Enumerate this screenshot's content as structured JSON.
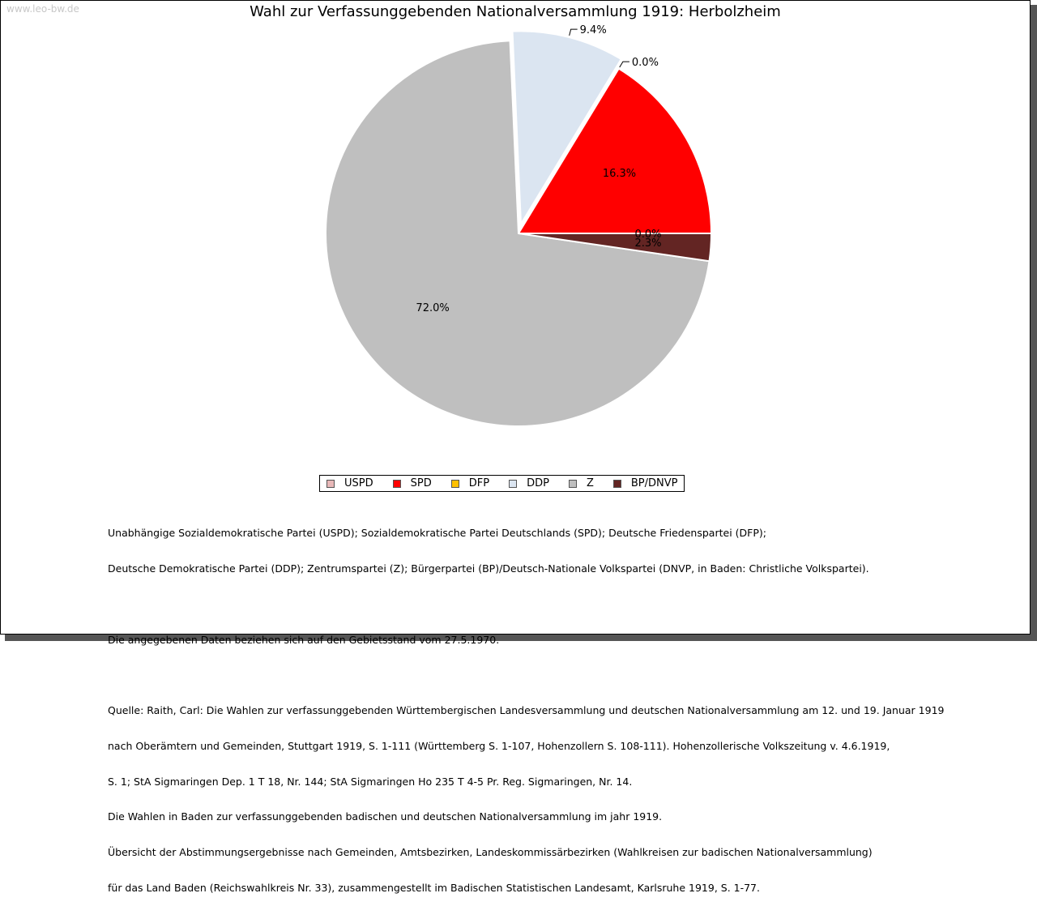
{
  "watermark": "www.leo-bw.de",
  "chart_data": {
    "type": "pie",
    "title": "Wahl zur Verfassunggebenden Nationalversammlung 1919: Herbolzheim",
    "slices": [
      {
        "name": "USPD",
        "value": 0.0,
        "label": "0.0%",
        "color": "#e8b8b8"
      },
      {
        "name": "SPD",
        "value": 16.3,
        "label": "16.3%",
        "color": "#ff0000"
      },
      {
        "name": "DFP",
        "value": 0.0,
        "label": "0.0%",
        "color": "#ffc000"
      },
      {
        "name": "DDP",
        "value": 9.4,
        "label": "9.4%",
        "color": "#dbe5f1"
      },
      {
        "name": "Z",
        "value": 72.0,
        "label": "72.0%",
        "color": "#bfbfbf"
      },
      {
        "name": "BP/DNVP",
        "value": 2.3,
        "label": "2.3%",
        "color": "#632523"
      }
    ],
    "legend_position": "bottom"
  },
  "notes": {
    "line1": "Unabhängige Sozialdemokratische Partei (USPD); Sozialdemokratische Partei Deutschlands (SPD); Deutsche Friedenspartei (DFP);",
    "line2": "Deutsche Demokratische Partei (DDP); Zentrumspartei (Z); Bürgerpartei (BP)/Deutsch-Nationale Volkspartei (DNVP, in Baden: Christliche Volkspartei).",
    "line3": "Die angegebenen Daten beziehen sich auf den Gebietsstand vom 27.5.1970.",
    "line4": "Quelle: Raith, Carl: Die Wahlen zur verfassunggebenden Württembergischen Landesversammlung und deutschen Nationalversammlung am 12. und 19. Januar 1919",
    "line5": "nach Oberämtern und Gemeinden, Stuttgart 1919, S. 1-111 (Württemberg S. 1-107, Hohenzollern S. 108-111). Hohenzollerische Volkszeitung v. 4.6.1919,",
    "line6": "S. 1; StA Sigmaringen Dep. 1 T 18, Nr. 144; StA Sigmaringen Ho 235 T 4-5 Pr. Reg. Sigmaringen, Nr. 14.",
    "line7": "Die Wahlen in Baden zur verfassunggebenden badischen und deutschen Nationalversammlung im jahr 1919.",
    "line8": "Übersicht der Abstimmungsergebnisse nach Gemeinden, Amtsbezirken, Landeskommissärbezirken (Wahlkreisen zur badischen Nationalversammlung)",
    "line9": "für das Land Baden (Reichswahlkreis Nr. 33), zusammengestellt im Badischen Statistischen Landesamt, Karlsruhe 1919, S. 1-77."
  }
}
